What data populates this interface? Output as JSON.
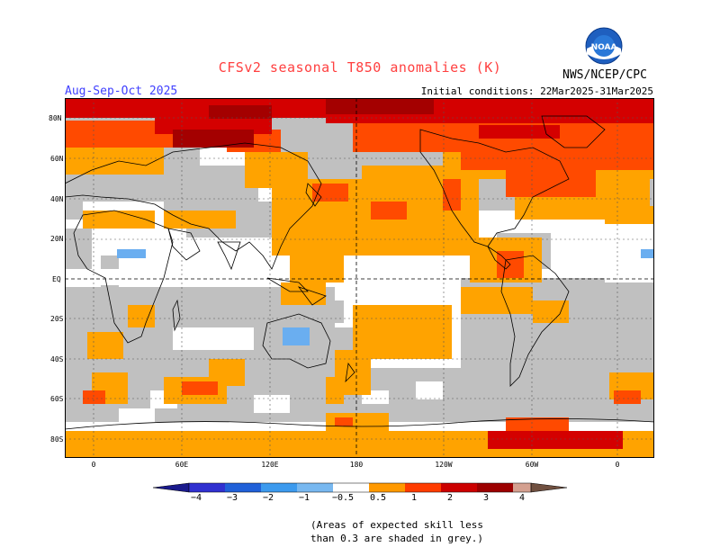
{
  "title": "CFSv2 seasonal T850 anomalies (K)",
  "period": "Aug-Sep-Oct 2025",
  "organization": "NWS/NCEP/CPC",
  "initial_conditions": "Initial conditions: 22Mar2025-31Mar2025",
  "logo_text": "NOAA",
  "lat_labels": [
    "80N",
    "60N",
    "40N",
    "20N",
    "EQ",
    "20S",
    "40S",
    "60S",
    "80S"
  ],
  "lon_labels": [
    "0",
    "60E",
    "120E",
    "180",
    "120W",
    "60W",
    "0"
  ],
  "colorbar": {
    "labels": [
      "−4",
      "−3",
      "−2",
      "−1",
      "−0.5",
      "0.5",
      "1",
      "2",
      "3",
      "4"
    ],
    "colors": [
      "#1a1a8c",
      "#3030d0",
      "#2060d8",
      "#3c9aee",
      "#78b8f0",
      "#ffffff",
      "#ff9900",
      "#ff3c00",
      "#cc0000",
      "#9c0000",
      "#d4a090",
      "#705040"
    ]
  },
  "note_line1": "(Areas of expected skill less",
  "note_line2": "than 0.3 are shaded in grey.)",
  "palette": {
    "grey": "#c0c0c0",
    "orange": "#ffa300",
    "red_orange": "#ff4a00",
    "red": "#d40000",
    "dark_red": "#a40000",
    "light_blue": "#6aaef0"
  }
}
